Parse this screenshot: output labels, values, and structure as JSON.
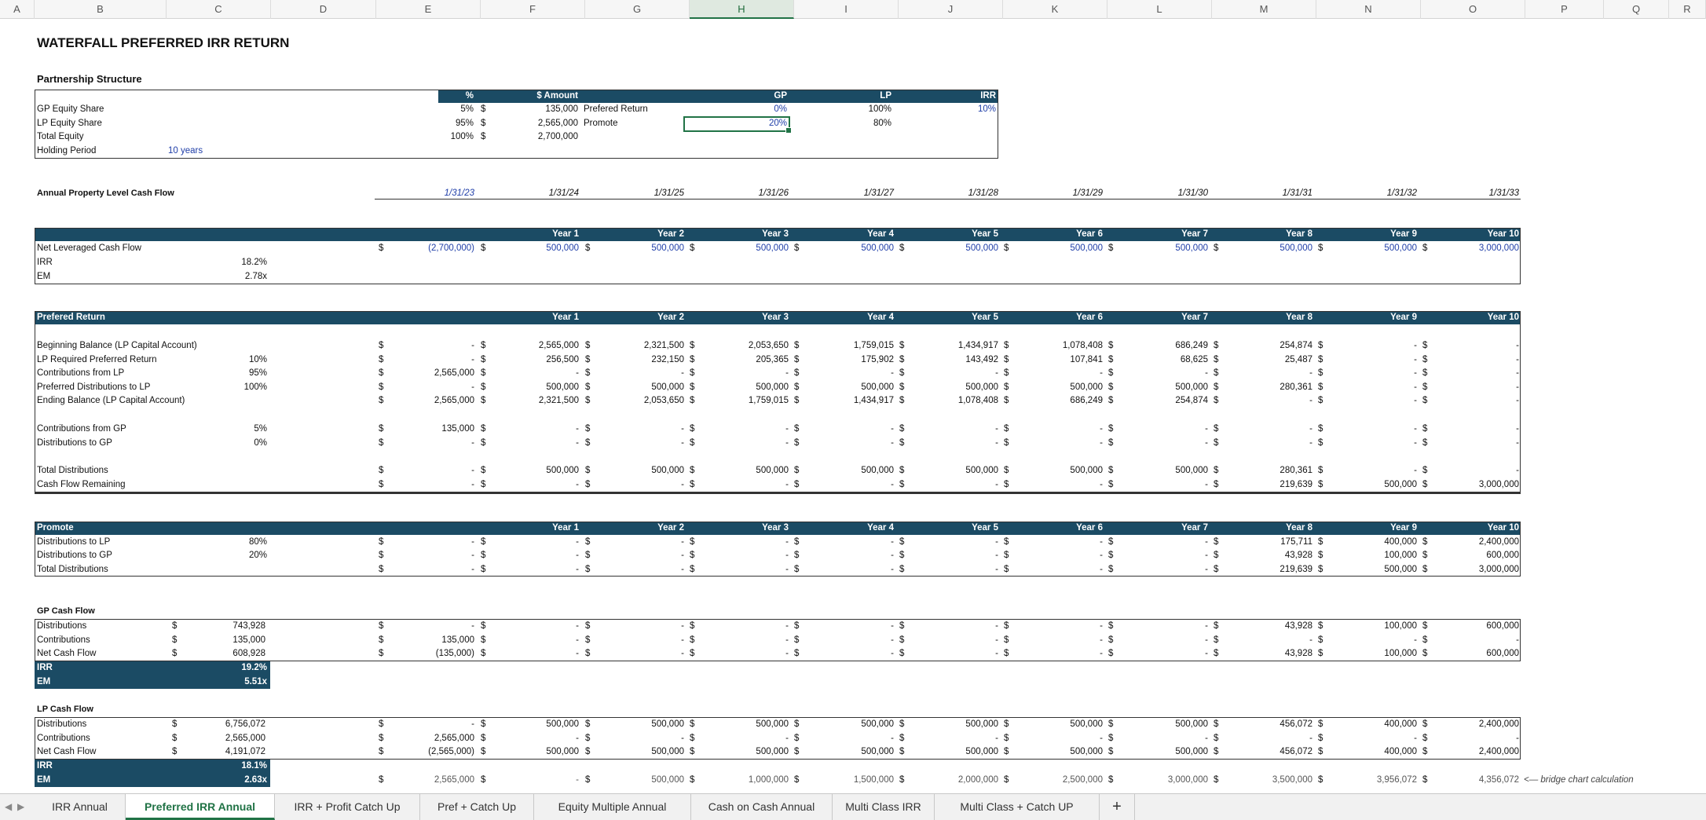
{
  "columns": [
    "A",
    "B",
    "C",
    "D",
    "E",
    "F",
    "G",
    "H",
    "I",
    "J",
    "K",
    "L",
    "M",
    "N",
    "O",
    "P",
    "Q",
    "R"
  ],
  "title": "WATERFALL PREFERRED IRR RETURN",
  "partnership": {
    "heading": "Partnership Structure",
    "col_pct": "%",
    "col_amount": "$ Amount",
    "col_gp": "GP",
    "col_lp": "LP",
    "col_irr": "IRR",
    "rows": [
      {
        "label": "GP Equity Share",
        "pct": "5%",
        "cur": "$",
        "amount": "135,000",
        "label2": "Prefered Return",
        "gp": "0%",
        "lp": "100%",
        "irr": "10%"
      },
      {
        "label": "LP Equity Share",
        "pct": "95%",
        "cur": "$",
        "amount": "2,565,000",
        "label2": "Promote",
        "gp": "20%",
        "lp": "80%",
        "irr": ""
      },
      {
        "label": "Total Equity",
        "pct": "100%",
        "cur": "$",
        "amount": "2,700,000",
        "label2": "",
        "gp": "",
        "lp": "",
        "irr": ""
      },
      {
        "label": "Holding Period",
        "pct": "",
        "cur": "",
        "amount": "",
        "label2": "",
        "gp": "",
        "lp": "",
        "irr": "",
        "extra": "10 years"
      }
    ]
  },
  "annual_label": "Annual Property Level Cash Flow",
  "dates": [
    "1/31/23",
    "1/31/24",
    "1/31/25",
    "1/31/26",
    "1/31/27",
    "1/31/28",
    "1/31/29",
    "1/31/30",
    "1/31/31",
    "1/31/32",
    "1/31/33"
  ],
  "years": [
    "Year 1",
    "Year 2",
    "Year 3",
    "Year 4",
    "Year 5",
    "Year 6",
    "Year 7",
    "Year 8",
    "Year 9",
    "Year 10"
  ],
  "net_cash_flow": {
    "label": "Net Leveraged Cash Flow",
    "values": [
      "(2,700,000)",
      "500,000",
      "500,000",
      "500,000",
      "500,000",
      "500,000",
      "500,000",
      "500,000",
      "500,000",
      "500,000",
      "3,000,000"
    ],
    "irr_label": "IRR",
    "irr": "18.2%",
    "em_label": "EM",
    "em": "2.78x"
  },
  "pref": {
    "heading": "Prefered Return",
    "rows": [
      {
        "label": "Beginning Balance (LP Capital Account)",
        "param": "",
        "values": [
          "-",
          "2,565,000",
          "2,321,500",
          "2,053,650",
          "1,759,015",
          "1,434,917",
          "1,078,408",
          "686,249",
          "254,874",
          "-",
          "-"
        ]
      },
      {
        "label": "LP Required Preferred Return",
        "param": "10%",
        "values": [
          "-",
          "256,500",
          "232,150",
          "205,365",
          "175,902",
          "143,492",
          "107,841",
          "68,625",
          "25,487",
          "-",
          "-"
        ]
      },
      {
        "label": "Contributions from LP",
        "param": "95%",
        "values": [
          "2,565,000",
          "-",
          "-",
          "-",
          "-",
          "-",
          "-",
          "-",
          "-",
          "-",
          "-"
        ]
      },
      {
        "label": "Preferred Distributions to LP",
        "param": "100%",
        "values": [
          "-",
          "500,000",
          "500,000",
          "500,000",
          "500,000",
          "500,000",
          "500,000",
          "500,000",
          "280,361",
          "-",
          "-"
        ]
      },
      {
        "label": "Ending Balance (LP Capital Account)",
        "param": "",
        "values": [
          "2,565,000",
          "2,321,500",
          "2,053,650",
          "1,759,015",
          "1,434,917",
          "1,078,408",
          "686,249",
          "254,874",
          "-",
          "-",
          "-"
        ]
      },
      {
        "label": "Contributions from GP",
        "param": "5%",
        "values": [
          "135,000",
          "-",
          "-",
          "-",
          "-",
          "-",
          "-",
          "-",
          "-",
          "-",
          "-"
        ]
      },
      {
        "label": "Distributions to GP",
        "param": "0%",
        "values": [
          "-",
          "-",
          "-",
          "-",
          "-",
          "-",
          "-",
          "-",
          "-",
          "-",
          "-"
        ]
      },
      {
        "label": "Total Distributions",
        "param": "",
        "values": [
          "-",
          "500,000",
          "500,000",
          "500,000",
          "500,000",
          "500,000",
          "500,000",
          "500,000",
          "280,361",
          "-",
          "-"
        ]
      },
      {
        "label": "Cash Flow Remaining",
        "param": "",
        "values": [
          "-",
          "-",
          "-",
          "-",
          "-",
          "-",
          "-",
          "-",
          "219,639",
          "500,000",
          "3,000,000"
        ]
      }
    ]
  },
  "promote": {
    "heading": "Promote",
    "rows": [
      {
        "label": "Distributions to LP",
        "param": "80%",
        "values": [
          "-",
          "-",
          "-",
          "-",
          "-",
          "-",
          "-",
          "-",
          "175,711",
          "400,000",
          "2,400,000"
        ]
      },
      {
        "label": "Distributions to GP",
        "param": "20%",
        "values": [
          "-",
          "-",
          "-",
          "-",
          "-",
          "-",
          "-",
          "-",
          "43,928",
          "100,000",
          "600,000"
        ]
      },
      {
        "label": "Total Distributions",
        "param": "",
        "values": [
          "-",
          "-",
          "-",
          "-",
          "-",
          "-",
          "-",
          "-",
          "219,639",
          "500,000",
          "3,000,000"
        ]
      }
    ]
  },
  "gp_cf": {
    "heading": "GP Cash Flow",
    "rows": [
      {
        "label": "Distributions",
        "total": "743,928",
        "values": [
          "-",
          "-",
          "-",
          "-",
          "-",
          "-",
          "-",
          "-",
          "43,928",
          "100,000",
          "600,000"
        ]
      },
      {
        "label": "Contributions",
        "total": "135,000",
        "values": [
          "135,000",
          "-",
          "-",
          "-",
          "-",
          "-",
          "-",
          "-",
          "-",
          "-",
          "-"
        ]
      },
      {
        "label": "Net Cash Flow",
        "total": "608,928",
        "values": [
          "(135,000)",
          "-",
          "-",
          "-",
          "-",
          "-",
          "-",
          "-",
          "43,928",
          "100,000",
          "600,000"
        ]
      }
    ],
    "irr_label": "IRR",
    "irr": "19.2%",
    "em_label": "EM",
    "em": "5.51x"
  },
  "lp_cf": {
    "heading": "LP Cash Flow",
    "rows": [
      {
        "label": "Distributions",
        "total": "6,756,072",
        "values": [
          "-",
          "500,000",
          "500,000",
          "500,000",
          "500,000",
          "500,000",
          "500,000",
          "500,000",
          "456,072",
          "400,000",
          "2,400,000"
        ]
      },
      {
        "label": "Contributions",
        "total": "2,565,000",
        "values": [
          "2,565,000",
          "-",
          "-",
          "-",
          "-",
          "-",
          "-",
          "-",
          "-",
          "-",
          "-"
        ]
      },
      {
        "label": "Net Cash Flow",
        "total": "4,191,072",
        "values": [
          "(2,565,000)",
          "500,000",
          "500,000",
          "500,000",
          "500,000",
          "500,000",
          "500,000",
          "500,000",
          "456,072",
          "400,000",
          "2,400,000"
        ]
      }
    ],
    "irr_label": "IRR",
    "irr": "18.1%",
    "em_label": "EM",
    "em": "2.63x"
  },
  "bridge": {
    "values": [
      "2,565,000",
      "-",
      "500,000",
      "1,000,000",
      "1,500,000",
      "2,000,000",
      "2,500,000",
      "3,000,000",
      "3,500,000",
      "3,956,072",
      "4,356,072"
    ],
    "note": "<— bridge chart calculation"
  },
  "tabs": [
    "IRR Annual",
    "Preferred IRR Annual",
    "IRR + Profit Catch Up",
    "Pref + Catch Up",
    "Equity Multiple Annual",
    "Cash on Cash Annual",
    "Multi Class IRR",
    "Multi Class + Catch UP"
  ],
  "active_tab": 1,
  "add_sheet": "+"
}
